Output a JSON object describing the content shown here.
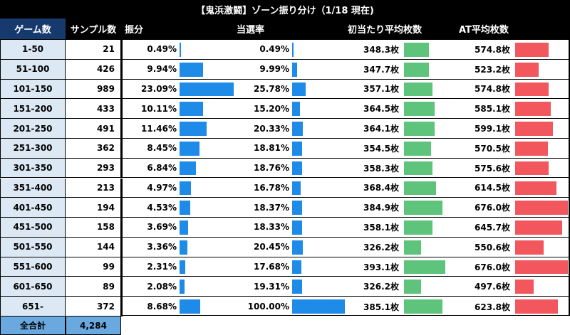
{
  "title": "【鬼浜激闘】ゾーン振り分け（1/18 現在)",
  "headers": {
    "games": "ゲーム数",
    "sample": "サンプル数",
    "ratio": "振分",
    "win_rate": "当選率",
    "first_hit": "初当たり平均枚数",
    "at_avg": "AT平均枚数"
  },
  "colors": {
    "header_bg": "#000000",
    "games_header_bg": "#163a6e",
    "games_col_bg": "#dce9f5",
    "total_bg": "#6aa8e0",
    "blue_bar": "#1e8be8",
    "green_bar": "#5ec47c",
    "red_bar": "#f2575d"
  },
  "rows": [
    {
      "games": "1-50",
      "sample": "21",
      "ratio": "0.49%",
      "win_rate": "0.49%",
      "first_hit": "348.3枚",
      "at_avg": "574.8枚"
    },
    {
      "games": "51-100",
      "sample": "426",
      "ratio": "9.94%",
      "win_rate": "9.99%",
      "first_hit": "347.7枚",
      "at_avg": "523.2枚"
    },
    {
      "games": "101-150",
      "sample": "989",
      "ratio": "23.09%",
      "win_rate": "25.78%",
      "first_hit": "357.1枚",
      "at_avg": "574.8枚"
    },
    {
      "games": "151-200",
      "sample": "433",
      "ratio": "10.11%",
      "win_rate": "15.20%",
      "first_hit": "364.5枚",
      "at_avg": "585.1枚"
    },
    {
      "games": "201-250",
      "sample": "491",
      "ratio": "11.46%",
      "win_rate": "20.33%",
      "first_hit": "364.1枚",
      "at_avg": "599.1枚"
    },
    {
      "games": "251-300",
      "sample": "362",
      "ratio": "8.45%",
      "win_rate": "18.81%",
      "first_hit": "354.5枚",
      "at_avg": "570.5枚"
    },
    {
      "games": "301-350",
      "sample": "293",
      "ratio": "6.84%",
      "win_rate": "18.76%",
      "first_hit": "358.3枚",
      "at_avg": "575.6枚"
    },
    {
      "games": "351-400",
      "sample": "213",
      "ratio": "4.97%",
      "win_rate": "16.78%",
      "first_hit": "368.4枚",
      "at_avg": "614.5枚"
    },
    {
      "games": "401-450",
      "sample": "194",
      "ratio": "4.53%",
      "win_rate": "18.37%",
      "first_hit": "384.9枚",
      "at_avg": "676.0枚"
    },
    {
      "games": "451-500",
      "sample": "158",
      "ratio": "3.69%",
      "win_rate": "18.33%",
      "first_hit": "358.1枚",
      "at_avg": "645.7枚"
    },
    {
      "games": "501-550",
      "sample": "144",
      "ratio": "3.36%",
      "win_rate": "20.45%",
      "first_hit": "326.2枚",
      "at_avg": "550.6枚"
    },
    {
      "games": "551-600",
      "sample": "99",
      "ratio": "2.31%",
      "win_rate": "17.68%",
      "first_hit": "393.1枚",
      "at_avg": "676.0枚"
    },
    {
      "games": "601-650",
      "sample": "89",
      "ratio": "2.08%",
      "win_rate": "19.31%",
      "first_hit": "326.2枚",
      "at_avg": "497.6枚"
    },
    {
      "games": "651-",
      "sample": "372",
      "ratio": "8.68%",
      "win_rate": "100.00%",
      "first_hit": "385.1枚",
      "at_avg": "623.8枚"
    }
  ],
  "total": {
    "label": "全合計",
    "value": "4,284"
  }
}
